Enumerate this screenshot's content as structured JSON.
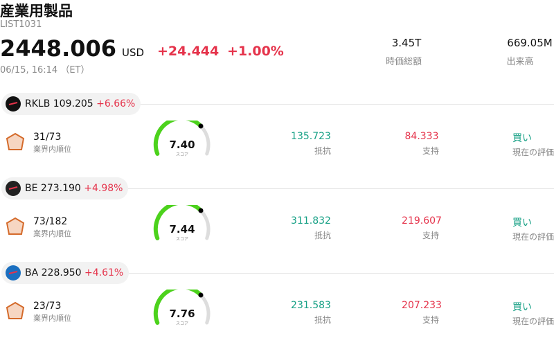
{
  "header": {
    "title": "産業用製品",
    "code": "LIST1031",
    "price": "2448.006",
    "currency": "USD",
    "change": "+24.444",
    "change_pct": "+1.00%",
    "timestamp": "06/15, 16:14 （ET）"
  },
  "stats": [
    {
      "value": "3.45T",
      "label": "時価総額"
    },
    {
      "value": "669.05M",
      "label": "出来高"
    }
  ],
  "labels": {
    "rank": "業界内順位",
    "score": "スコア",
    "resistance": "抵抗",
    "support": "支持",
    "rating": "現在の評価"
  },
  "stocks": [
    {
      "ticker": "RKLB",
      "price": "109.205",
      "change": "+6.66%",
      "rank": "31/73",
      "score": "7.40",
      "resistance": "135.723",
      "support": "84.333",
      "rating": "買い"
    },
    {
      "ticker": "BE",
      "price": "273.190",
      "change": "+4.98%",
      "rank": "73/182",
      "score": "7.44",
      "resistance": "311.832",
      "support": "219.607",
      "rating": "買い"
    },
    {
      "ticker": "BA",
      "price": "228.950",
      "change": "+4.61%",
      "rank": "23/73",
      "score": "7.76",
      "resistance": "231.583",
      "support": "207.233",
      "rating": "買い"
    }
  ]
}
